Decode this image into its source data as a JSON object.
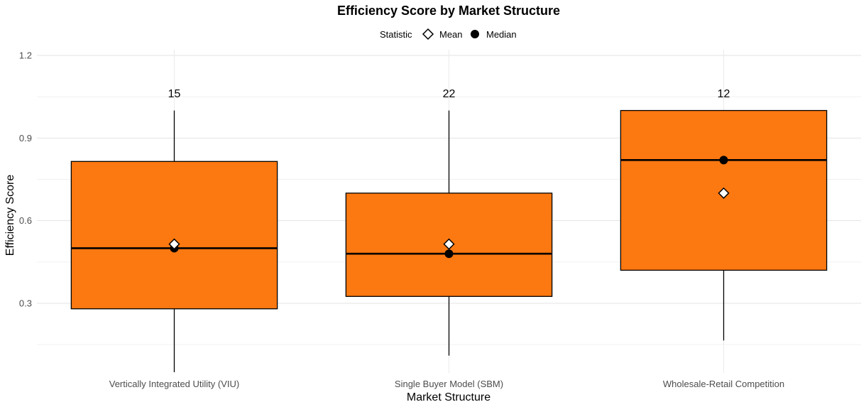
{
  "chart_data": {
    "type": "box",
    "title": "Efficiency Score by Market Structure",
    "xlabel": "Market Structure",
    "ylabel": "Efficiency Score",
    "ylim": [
      0.05,
      1.2
    ],
    "yticks": [
      0.3,
      0.6,
      0.9,
      1.2
    ],
    "ytick_labels": [
      "0.3",
      "0.6",
      "0.9",
      "1.2"
    ],
    "grid": true,
    "box_color": "#FC7810",
    "legend": {
      "title": "Statistic",
      "placement": "top-center",
      "items": [
        {
          "label": "Mean",
          "marker": "diamond-open"
        },
        {
          "label": "Median",
          "marker": "circle-filled"
        }
      ]
    },
    "categories": [
      "Vertically Integrated Utility (VIU)",
      "Single Buyer Model (SBM)",
      "Wholesale-Retail Competition"
    ],
    "boxes": [
      {
        "min": 0.05,
        "q1": 0.28,
        "median": 0.5,
        "q3": 0.815,
        "max": 1.0,
        "mean": 0.515,
        "n_label": "15"
      },
      {
        "min": 0.11,
        "q1": 0.325,
        "median": 0.48,
        "q3": 0.7,
        "max": 1.0,
        "mean": 0.515,
        "n_label": "22"
      },
      {
        "min": 0.165,
        "q1": 0.42,
        "median": 0.82,
        "q3": 1.0,
        "max": 1.0,
        "mean": 0.7,
        "n_label": "12"
      }
    ]
  }
}
